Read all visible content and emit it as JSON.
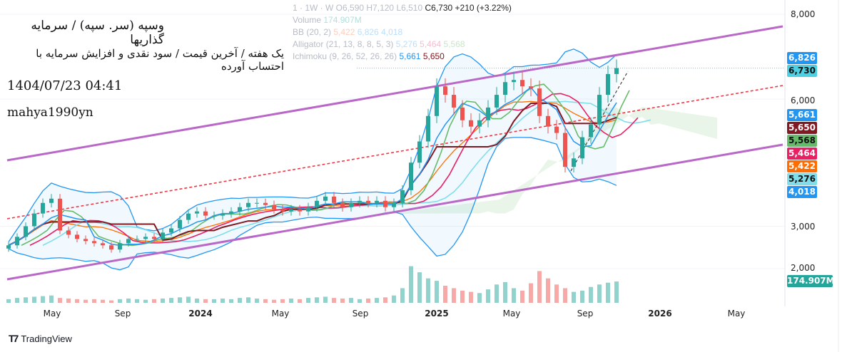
{
  "legend": {
    "symbol_row": "1 · 1W · W",
    "open": "O6,590",
    "high": "H7,120",
    "low": "L6,510",
    "close": "C6,730",
    "change": "+210 (+3.22%)",
    "volume": "Volume",
    "volume_val": "174.907M",
    "bb": "BB (20, 2)",
    "bb_vals": [
      "5,422",
      "6,826",
      "4,018"
    ],
    "alligator": "Alligator (21, 13, 8, 8, 5, 3)",
    "alligator_vals": [
      "5,276",
      "5,464",
      "5,568"
    ],
    "ichimoku": "Ichimoku (9, 26, 52, 26, 26)",
    "ichimoku_vals": [
      "5,661",
      "5,650"
    ]
  },
  "overlay": {
    "title": "وسپه (سر. سپه) / سرمایه گذاریها",
    "subtitle": "یک هفته / آخرین قیمت / سود نقدی و افزایش سرمایه با احتساب آورده",
    "datetime": "1404/07/23 04:41",
    "author": "mahya1990yn"
  },
  "price_labels": [
    {
      "text": "6,826",
      "bg": "#2196f3",
      "fg": "#fff",
      "price": 6826
    },
    {
      "text": "6,730",
      "bg": "#4dd0e1",
      "fg": "#111",
      "price": 6730
    },
    {
      "text": "5,661",
      "bg": "#2196f3",
      "fg": "#fff",
      "price": 5661
    },
    {
      "text": "5,650",
      "bg": "#801922",
      "fg": "#fff",
      "price": 5650
    },
    {
      "text": "5,568",
      "bg": "#66bb6a",
      "fg": "#111",
      "price": 5568
    },
    {
      "text": "5,464",
      "bg": "#e91e63",
      "fg": "#fff",
      "price": 5464
    },
    {
      "text": "5,422",
      "bg": "#ff6d00",
      "fg": "#fff",
      "price": 5422
    },
    {
      "text": "5,276",
      "bg": "#80deea",
      "fg": "#111",
      "price": 5276
    },
    {
      "text": "4,018",
      "bg": "#2196f3",
      "fg": "#fff",
      "price": 4018
    }
  ],
  "volume_label": {
    "text": "174.907M",
    "bg": "#26a69a"
  },
  "branding": "TradingView",
  "chart_data": {
    "type": "candlestick",
    "y_ticks": [
      "8,000",
      "6,000",
      "3,000",
      "2,000"
    ],
    "y_tick_values": [
      8000,
      6000,
      3000,
      2000
    ],
    "x_ticks": [
      "May",
      "Sep",
      "2024",
      "May",
      "Sep",
      "2025",
      "May",
      "Sep",
      "2026",
      "May"
    ],
    "closes": [
      2550,
      2750,
      3000,
      3300,
      3550,
      3650,
      2900,
      2800,
      2700,
      2650,
      2600,
      2550,
      2450,
      2600,
      2700,
      2700,
      2750,
      2700,
      2850,
      2950,
      3150,
      3300,
      3350,
      3250,
      3250,
      3300,
      3350,
      3450,
      3550,
      3550,
      3500,
      3400,
      3350,
      3400,
      3350,
      3450,
      3600,
      3700,
      3550,
      3450,
      3550,
      3600,
      3550,
      3600,
      3450,
      3550,
      3850,
      4500,
      5000,
      5600,
      6300,
      6100,
      5800,
      5500,
      5350,
      5500,
      5800,
      6100,
      6400,
      6450,
      6300,
      6250,
      5600,
      5350,
      5200,
      4400,
      4600,
      5100,
      5400,
      6100,
      6590,
      6730
    ],
    "volumes_m": [
      30,
      40,
      45,
      50,
      55,
      60,
      40,
      35,
      30,
      25,
      30,
      25,
      20,
      30,
      35,
      30,
      25,
      30,
      35,
      40,
      45,
      50,
      35,
      30,
      30,
      35,
      30,
      40,
      45,
      35,
      30,
      25,
      30,
      35,
      30,
      40,
      45,
      50,
      40,
      35,
      40,
      30,
      35,
      40,
      45,
      60,
      120,
      300,
      250,
      200,
      180,
      140,
      120,
      100,
      90,
      80,
      110,
      150,
      170,
      120,
      100,
      160,
      260,
      200,
      150,
      120,
      90,
      100,
      130,
      150,
      165,
      175
    ]
  }
}
